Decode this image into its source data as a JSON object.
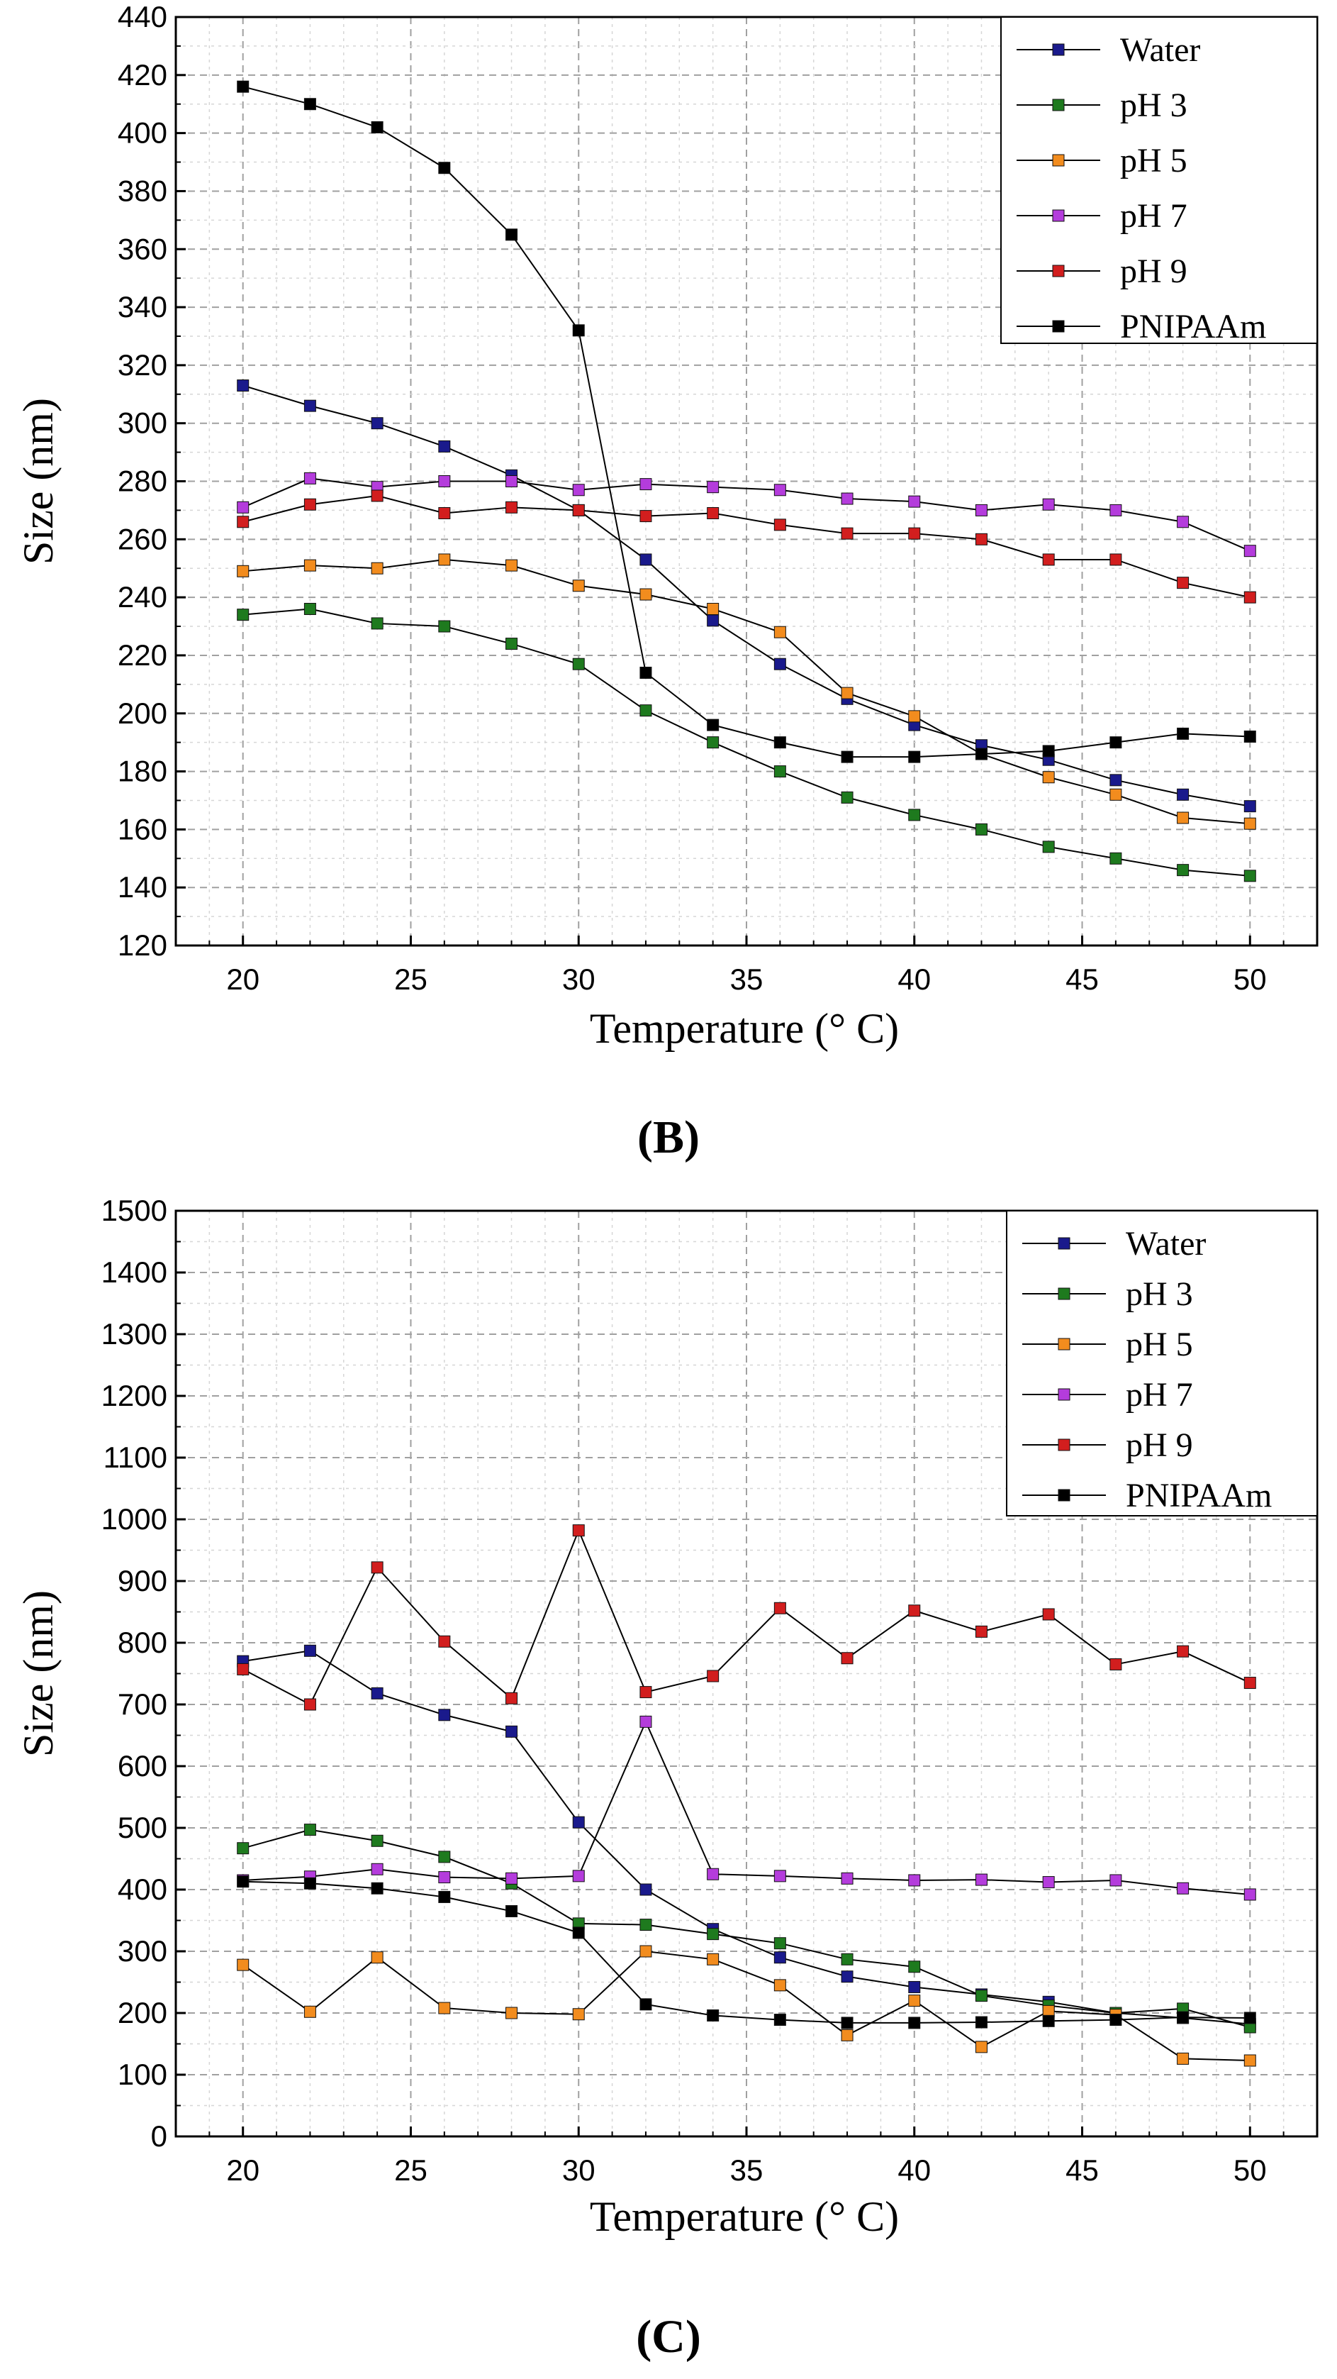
{
  "chart_data": [
    {
      "type": "line",
      "panel_label": "(B)",
      "xlabel": "Temperature (° C)",
      "ylabel": "Size (nm)",
      "xlim": [
        18,
        52
      ],
      "ylim": [
        120,
        440
      ],
      "xticks": [
        20,
        25,
        30,
        35,
        40,
        45,
        50
      ],
      "yticks": [
        120,
        140,
        160,
        180,
        200,
        220,
        240,
        260,
        280,
        300,
        320,
        340,
        360,
        380,
        400,
        420,
        440
      ],
      "grid": true,
      "legend_position": "top-right",
      "x": [
        20,
        22,
        24,
        26,
        28,
        30,
        32,
        34,
        36,
        38,
        40,
        42,
        44,
        46,
        48,
        50
      ],
      "series": [
        {
          "name": "Water",
          "color": "#1a1a8c",
          "values": [
            313,
            306,
            300,
            292,
            282,
            270,
            253,
            232,
            217,
            205,
            196,
            189,
            184,
            177,
            172,
            168
          ]
        },
        {
          "name": "pH 3",
          "color": "#1e7a1e",
          "values": [
            234,
            236,
            231,
            230,
            224,
            217,
            201,
            190,
            180,
            171,
            165,
            160,
            154,
            150,
            146,
            144
          ]
        },
        {
          "name": "pH 5",
          "color": "#f28c1e",
          "values": [
            249,
            251,
            250,
            253,
            251,
            244,
            241,
            236,
            228,
            207,
            199,
            186,
            178,
            172,
            164,
            162
          ]
        },
        {
          "name": "pH 7",
          "color": "#b43cdc",
          "values": [
            271,
            281,
            278,
            280,
            280,
            277,
            279,
            278,
            277,
            274,
            273,
            270,
            272,
            270,
            266,
            256
          ]
        },
        {
          "name": "pH 9",
          "color": "#d21e1e",
          "values": [
            266,
            272,
            275,
            269,
            271,
            270,
            268,
            269,
            265,
            262,
            262,
            260,
            253,
            253,
            245,
            240
          ]
        },
        {
          "name": "PNIPAAm",
          "color": "#000000",
          "values": [
            416,
            410,
            402,
            388,
            365,
            332,
            214,
            196,
            190,
            185,
            185,
            186,
            187,
            190,
            193,
            192
          ]
        }
      ]
    },
    {
      "type": "line",
      "panel_label": "(C)",
      "xlabel": "Temperature (° C)",
      "ylabel": "Size (nm)",
      "xlim": [
        18,
        52
      ],
      "ylim": [
        0,
        1500
      ],
      "xticks": [
        20,
        25,
        30,
        35,
        40,
        45,
        50
      ],
      "yticks": [
        0,
        100,
        200,
        300,
        400,
        500,
        600,
        700,
        800,
        900,
        1000,
        1100,
        1200,
        1300,
        1400,
        1500
      ],
      "grid": true,
      "legend_position": "top-right",
      "x": [
        20,
        22,
        24,
        26,
        28,
        30,
        32,
        34,
        36,
        38,
        40,
        42,
        44,
        46,
        48,
        50
      ],
      "series": [
        {
          "name": "Water",
          "color": "#1a1a8c",
          "values": [
            770,
            787,
            718,
            683,
            656,
            509,
            400,
            336,
            290,
            259,
            242,
            230,
            218,
            200,
            192,
            182
          ]
        },
        {
          "name": "pH 3",
          "color": "#1e7a1e",
          "values": [
            467,
            497,
            479,
            453,
            410,
            345,
            343,
            328,
            313,
            287,
            275,
            228,
            212,
            200,
            207,
            177
          ]
        },
        {
          "name": "pH 5",
          "color": "#f28c1e",
          "values": [
            278,
            202,
            290,
            208,
            200,
            198,
            300,
            287,
            245,
            164,
            220,
            145,
            203,
            197,
            126,
            123
          ]
        },
        {
          "name": "pH 7",
          "color": "#b43cdc",
          "values": [
            415,
            421,
            433,
            420,
            418,
            422,
            672,
            425,
            422,
            418,
            415,
            416,
            412,
            415,
            402,
            392
          ]
        },
        {
          "name": "pH 9",
          "color": "#d21e1e",
          "values": [
            757,
            700,
            922,
            802,
            710,
            982,
            720,
            746,
            856,
            775,
            852,
            818,
            846,
            765,
            786,
            735
          ]
        },
        {
          "name": "PNIPAAm",
          "color": "#000000",
          "values": [
            413,
            410,
            402,
            388,
            365,
            330,
            214,
            196,
            189,
            184,
            184,
            185,
            187,
            189,
            193,
            192
          ]
        }
      ]
    }
  ]
}
